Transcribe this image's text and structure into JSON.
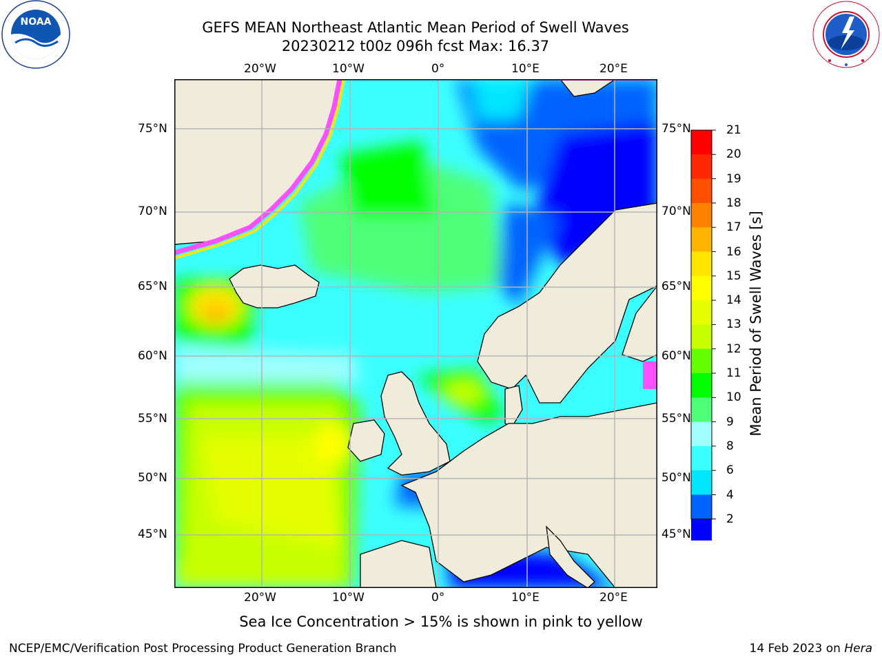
{
  "title": {
    "line1": "GEFS MEAN Northeast Atlantic Mean Period of Swell Waves",
    "line2": "20230212 t00z 096h fcst   Max: 16.37"
  },
  "logos": {
    "left": "NOAA",
    "right": "NATIONAL WEATHER SERVICE"
  },
  "map": {
    "lon_labels": [
      "20°W",
      "10°W",
      "0°",
      "10°E",
      "20°E"
    ],
    "lat_labels": [
      "75°N",
      "70°N",
      "65°N",
      "60°N",
      "55°N",
      "50°N",
      "45°N"
    ],
    "colors": {
      "land": "#efecdc",
      "ice": "#ffffff",
      "grid": "#b4b4b4"
    }
  },
  "colorbar": {
    "label": "Mean Period of Swell Waves [s]",
    "ticks": [
      "2",
      "4",
      "6",
      "8",
      "9",
      "10",
      "11",
      "12",
      "13",
      "14",
      "15",
      "16",
      "17",
      "18",
      "19",
      "20",
      "21"
    ],
    "colors": [
      "#0000ff",
      "#0064ff",
      "#00e6ff",
      "#3cffff",
      "#a0ffff",
      "#50ff78",
      "#00ff00",
      "#64ff00",
      "#c8ff00",
      "#e6ff00",
      "#ffff00",
      "#ffe600",
      "#ffb400",
      "#ff8200",
      "#ff5000",
      "#ff2800",
      "#ff0000"
    ]
  },
  "caption": "Sea Ice Concentration > 15% is shown in pink to yellow",
  "footer": {
    "left": "NCEP/EMC/Verification Post Processing Product Generation Branch",
    "right_prefix": "14 Feb 2023 on ",
    "right_host": "Hera"
  }
}
